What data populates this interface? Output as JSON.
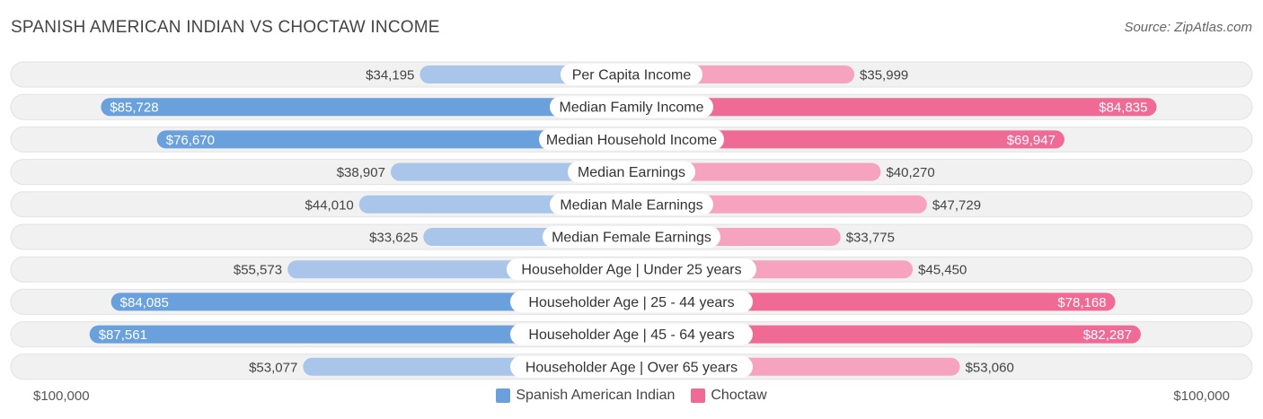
{
  "title": "SPANISH AMERICAN INDIAN VS CHOCTAW INCOME",
  "source": "Source: ZipAtlas.com",
  "colors": {
    "left_strong": "#6aa0dc",
    "left_light": "#a9c6ea",
    "right_strong": "#f06a96",
    "right_light": "#f5a3bf",
    "row_bg": "#f1f1f1"
  },
  "chart_data": {
    "type": "bar",
    "orientation": "horizontal-diverging",
    "max_value": 100000,
    "axis": {
      "left_label": "$100,000",
      "right_label": "$100,000"
    },
    "legend": [
      {
        "name": "Spanish American Indian",
        "color": "#6aa0dc"
      },
      {
        "name": "Choctaw",
        "color": "#f06a96"
      }
    ],
    "categories": [
      "Per Capita Income",
      "Median Family Income",
      "Median Household Income",
      "Median Earnings",
      "Median Male Earnings",
      "Median Female Earnings",
      "Householder Age | Under 25 years",
      "Householder Age | 25 - 44 years",
      "Householder Age | 45 - 64 years",
      "Householder Age | Over 65 years"
    ],
    "series": [
      {
        "name": "Spanish American Indian",
        "values": [
          34195,
          85728,
          76670,
          38907,
          44010,
          33625,
          55573,
          84085,
          87561,
          53077
        ],
        "labels": [
          "$34,195",
          "$85,728",
          "$76,670",
          "$38,907",
          "$44,010",
          "$33,625",
          "$55,573",
          "$84,085",
          "$87,561",
          "$53,077"
        ]
      },
      {
        "name": "Choctaw",
        "values": [
          35999,
          84835,
          69947,
          40270,
          47729,
          33775,
          45450,
          78168,
          82287,
          53060
        ],
        "labels": [
          "$35,999",
          "$84,835",
          "$69,947",
          "$40,270",
          "$47,729",
          "$33,775",
          "$45,450",
          "$78,168",
          "$82,287",
          "$53,060"
        ]
      }
    ]
  }
}
